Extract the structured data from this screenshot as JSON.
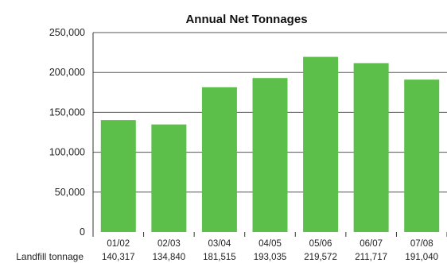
{
  "chart_data": {
    "type": "bar",
    "title": "Annual Net Tonnages",
    "categories": [
      "01/02",
      "02/03",
      "03/04",
      "04/05",
      "05/06",
      "06/07",
      "07/08"
    ],
    "series": [
      {
        "name": "Landfill tonnage",
        "values": [
          140317,
          134840,
          181515,
          193035,
          219572,
          211717,
          191040
        ],
        "labels": [
          "140,317",
          "134,840",
          "181,515",
          "193,035",
          "219,572",
          "211,717",
          "191,040"
        ],
        "color": "#5cbf4a"
      }
    ],
    "ylim": [
      0,
      250000
    ],
    "yticks": [
      0,
      50000,
      100000,
      150000,
      200000,
      250000
    ],
    "ytick_labels": [
      "0",
      "50,000",
      "100,000",
      "150,000",
      "200,000",
      "250,000"
    ],
    "grid": "horizontal",
    "data_table": true
  }
}
